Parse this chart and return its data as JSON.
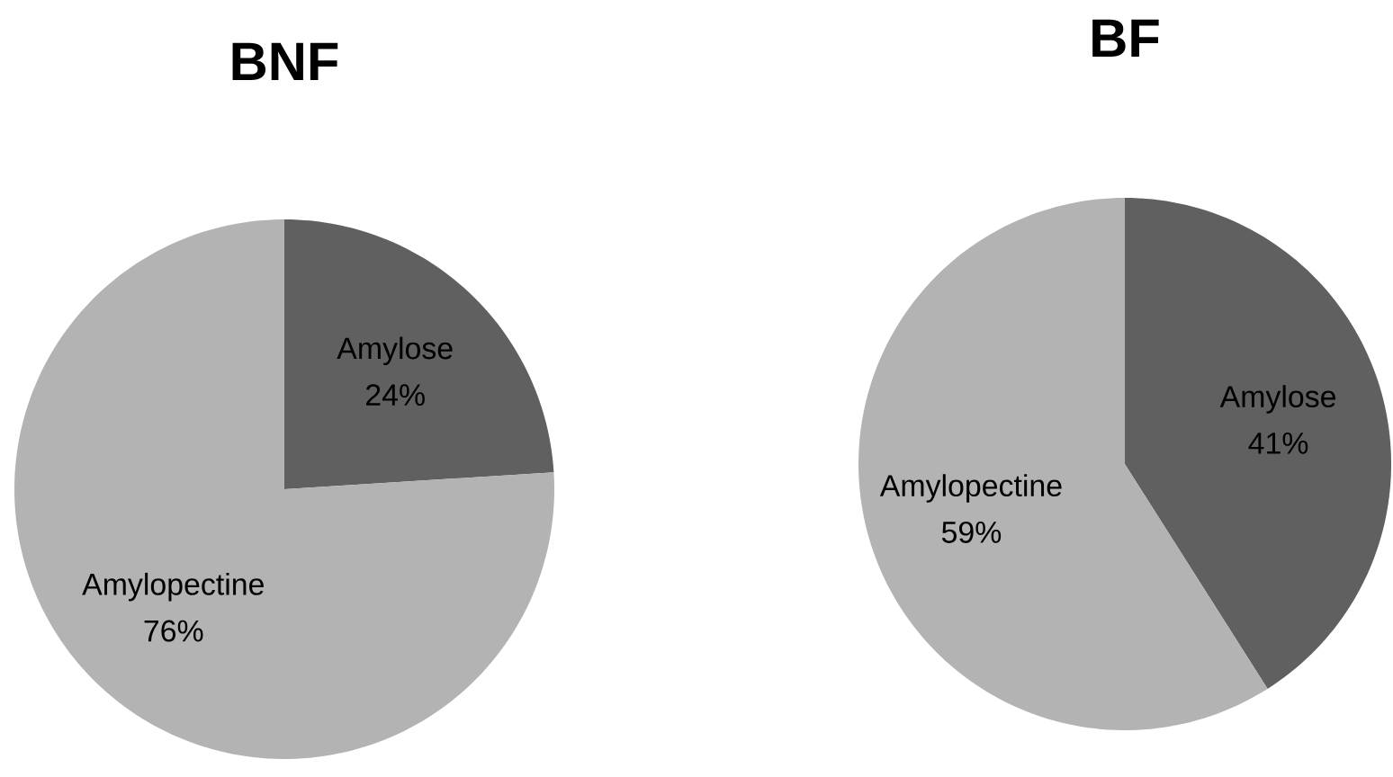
{
  "chart_data": [
    {
      "type": "pie",
      "title": "BNF",
      "categories": [
        "Amylose",
        "Amylopectine"
      ],
      "values": [
        24,
        76
      ],
      "colors": [
        "#606060",
        "#b3b3b3"
      ],
      "value_labels": [
        "24%",
        "76%"
      ]
    },
    {
      "type": "pie",
      "title": "BF",
      "categories": [
        "Amylose",
        "Amylopectine"
      ],
      "values": [
        41,
        59
      ],
      "colors": [
        "#606060",
        "#b3b3b3"
      ],
      "value_labels": [
        "41%",
        "59%"
      ]
    }
  ]
}
